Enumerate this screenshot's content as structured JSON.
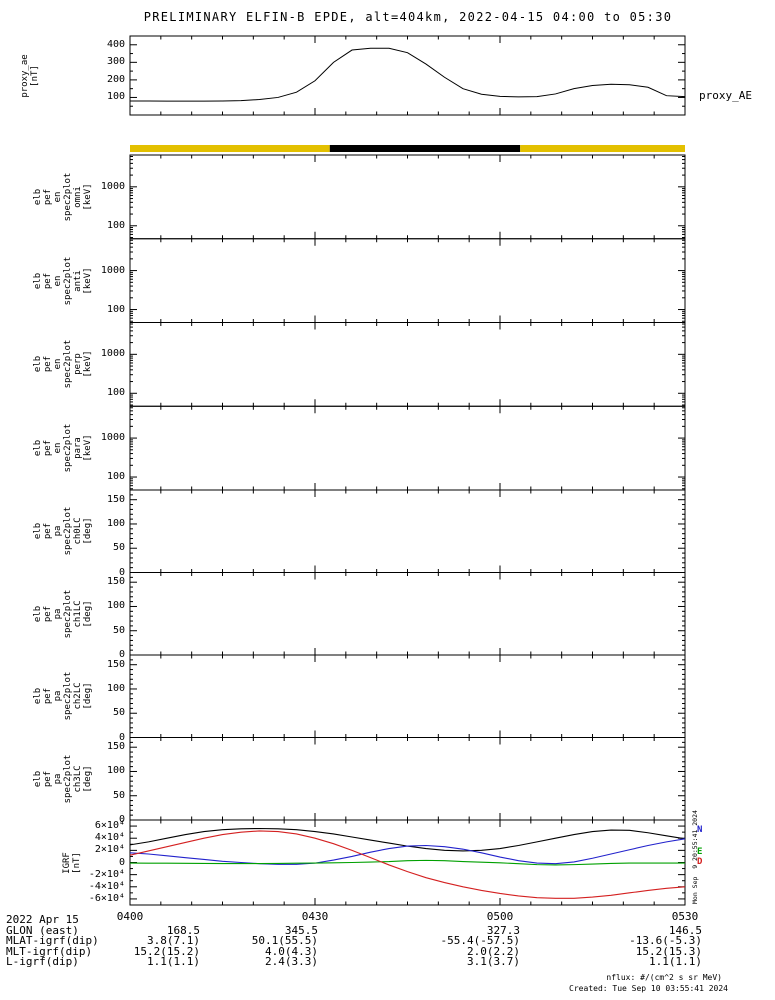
{
  "title": "PRELIMINARY ELFIN-B EPDE, alt=404km, 2022-04-15 04:00 to 05:30",
  "top_panel": {
    "ylabel_lines": [
      "proxy_ae",
      "[nT]"
    ],
    "right_label": "proxy_AE",
    "yticks": [
      "100",
      "200",
      "300",
      "400"
    ],
    "ytick_values": [
      100,
      200,
      300,
      400
    ],
    "ylim": [
      0,
      450
    ]
  },
  "survey_bar": {
    "segments": [
      {
        "from": 0.0,
        "to": 0.36,
        "color": "#e3c000"
      },
      {
        "from": 0.36,
        "to": 0.703,
        "color": "#000000"
      },
      {
        "from": 0.703,
        "to": 1.0,
        "color": "#e3c000"
      }
    ]
  },
  "panels": {
    "proxy": {
      "ylabel_lines": [
        "proxy_ae",
        "[nT]"
      ],
      "yticks": [
        "100",
        "200",
        "300",
        "400"
      ],
      "ytick_values": [
        100,
        200,
        300,
        400
      ]
    },
    "spec": {
      "yticks": [
        "100",
        "1000"
      ],
      "ytick_values": [
        100,
        1000
      ],
      "items": [
        {
          "label_lines": [
            "elb",
            "pef",
            "en",
            "spec2plot",
            "omni",
            "[keV]"
          ]
        },
        {
          "label_lines": [
            "elb",
            "pef",
            "en",
            "spec2plot",
            "anti",
            "[keV]"
          ]
        },
        {
          "label_lines": [
            "elb",
            "pef",
            "en",
            "spec2plot",
            "perp",
            "[keV]"
          ]
        },
        {
          "label_lines": [
            "elb",
            "pef",
            "en",
            "spec2plot",
            "para",
            "[keV]"
          ]
        }
      ]
    },
    "pa": {
      "yticks": [
        "0",
        "50",
        "100",
        "150"
      ],
      "ytick_values": [
        0,
        50,
        100,
        150
      ],
      "items": [
        {
          "label_lines": [
            "elb",
            "pef",
            "pa",
            "spec2plot",
            "ch0LC",
            "[deg]"
          ]
        },
        {
          "label_lines": [
            "elb",
            "pef",
            "pa",
            "spec2plot",
            "ch1LC",
            "[deg]"
          ]
        },
        {
          "label_lines": [
            "elb",
            "pef",
            "pa",
            "spec2plot",
            "ch2LC",
            "[deg]"
          ]
        },
        {
          "label_lines": [
            "elb",
            "pef",
            "pa",
            "spec2plot",
            "ch3LC",
            "[deg]"
          ]
        }
      ]
    },
    "igrf": {
      "label_lines": [
        "IGRF",
        "[nT]"
      ],
      "yticks": [
        "6×10⁴",
        "4×10⁴",
        "2×10⁴",
        "0",
        "-2×10⁴",
        "-4×10⁴",
        "-6×10⁴"
      ],
      "ytick_values": [
        60000,
        40000,
        20000,
        0,
        -20000,
        -40000,
        -60000
      ],
      "right_labels": [
        {
          "text": "N",
          "color": "#2222cc"
        },
        {
          "text": "E",
          "color": "#00a000"
        },
        {
          "text": "D",
          "color": "#d42020"
        }
      ]
    }
  },
  "xaxis": {
    "ticks": [
      "0400",
      "0430",
      "0500",
      "0530"
    ]
  },
  "footer": {
    "date": "2022 Apr 15",
    "rows": [
      {
        "label": "GLON (east)",
        "values": [
          "168.5",
          "345.5",
          "327.3",
          "146.5"
        ]
      },
      {
        "label": "MLAT-igrf(dip)",
        "values": [
          "3.8(7.1)",
          "50.1(55.5)",
          "-55.4(-57.5)",
          "-13.6(-5.3)"
        ]
      },
      {
        "label": "MLT-igrf(dip)",
        "values": [
          "15.2(15.2)",
          "4.0(4.3)",
          "2.0(2.2)",
          "15.2(15.3)"
        ]
      },
      {
        "label": "L-igrf(dip)",
        "values": [
          "1.1(1.1)",
          "2.4(3.3)",
          "3.1(3.7)",
          "1.1(1.1)"
        ]
      }
    ]
  },
  "notes": {
    "nflux": "nflux: #/(cm^2 s sr MeV)",
    "created": "Created: Tue Sep 10 03:55:41 2024"
  },
  "stamps": {
    "side": "Mon Sep  9 20:55:41 2024"
  },
  "chart_data": [
    {
      "type": "line",
      "title": "proxy_AE",
      "ylabel": "proxy_ae [nT]",
      "ylim": [
        0,
        450
      ],
      "yticks": [
        100,
        200,
        300,
        400
      ],
      "x_range": [
        "04:00",
        "05:30"
      ],
      "x_minutes": [
        0,
        3,
        6,
        9,
        12,
        15,
        18,
        21,
        24,
        27,
        30,
        33,
        36,
        39,
        42,
        45,
        48,
        51,
        54,
        57,
        60,
        63,
        66,
        69,
        72,
        75,
        78,
        81,
        84,
        87,
        90
      ],
      "values": [
        80,
        80,
        79,
        79,
        79,
        80,
        82,
        88,
        100,
        130,
        195,
        300,
        370,
        380,
        380,
        355,
        290,
        215,
        150,
        118,
        106,
        103,
        105,
        120,
        150,
        168,
        175,
        172,
        158,
        110,
        105
      ],
      "color": "#000000"
    },
    {
      "type": "line",
      "title": "IGRF [nT]",
      "ylim": [
        -70000,
        70000
      ],
      "yticks": [
        -60000,
        -40000,
        -20000,
        0,
        20000,
        40000,
        60000
      ],
      "x_range": [
        "04:00",
        "05:30"
      ],
      "x_minutes": [
        0,
        3,
        6,
        9,
        12,
        15,
        18,
        21,
        24,
        27,
        30,
        33,
        36,
        39,
        42,
        45,
        48,
        51,
        54,
        57,
        60,
        63,
        66,
        69,
        72,
        75,
        78,
        81,
        84,
        87,
        90
      ],
      "series": [
        {
          "name": "Btotal",
          "color": "#000000",
          "values": [
            29000,
            34000,
            40000,
            46000,
            51000,
            54000,
            55500,
            56000,
            55500,
            54000,
            51000,
            47000,
            42000,
            37000,
            32000,
            27000,
            23000,
            20000,
            19000,
            20000,
            23000,
            28000,
            34000,
            40000,
            46000,
            51000,
            53500,
            53000,
            49000,
            44000,
            39000
          ]
        },
        {
          "name": "N",
          "color": "#2222cc",
          "values": [
            16000,
            14000,
            11000,
            8000,
            5000,
            2000,
            0,
            -2000,
            -3000,
            -3000,
            -1000,
            4000,
            10000,
            17000,
            23000,
            27000,
            28000,
            26000,
            22000,
            16000,
            9000,
            3000,
            -1000,
            -2000,
            1000,
            7000,
            14000,
            21000,
            28000,
            34000,
            39000
          ]
        },
        {
          "name": "E",
          "color": "#00a000",
          "values": [
            -1000,
            -1100,
            -1200,
            -1300,
            -1500,
            -1700,
            -1800,
            -1700,
            -1500,
            -1200,
            -1000,
            -500,
            0,
            800,
            1500,
            3000,
            3500,
            3000,
            1500,
            500,
            -500,
            -2000,
            -3500,
            -4000,
            -3500,
            -2500,
            -1500,
            -1000,
            -1000,
            -1000,
            -1000
          ]
        },
        {
          "name": "D",
          "color": "#d42020",
          "values": [
            12000,
            19000,
            26000,
            33000,
            40000,
            46000,
            50000,
            52000,
            51000,
            47000,
            40000,
            31000,
            20000,
            8000,
            -4000,
            -15000,
            -25000,
            -33000,
            -40000,
            -46000,
            -51000,
            -55000,
            -58000,
            -59000,
            -59000,
            -57000,
            -54000,
            -50000,
            -46000,
            -42500,
            -40000
          ]
        }
      ]
    },
    {
      "type": "heatmap",
      "title": "EPDE energy and pitch-angle spectrograms",
      "note": "eight spectrogram panels are rendered empty (no data plotted)",
      "panels": [
        "omni [keV]",
        "anti [keV]",
        "perp [keV]",
        "para [keV]",
        "ch0LC [deg]",
        "ch1LC [deg]",
        "ch2LC [deg]",
        "ch3LC [deg]"
      ]
    }
  ]
}
